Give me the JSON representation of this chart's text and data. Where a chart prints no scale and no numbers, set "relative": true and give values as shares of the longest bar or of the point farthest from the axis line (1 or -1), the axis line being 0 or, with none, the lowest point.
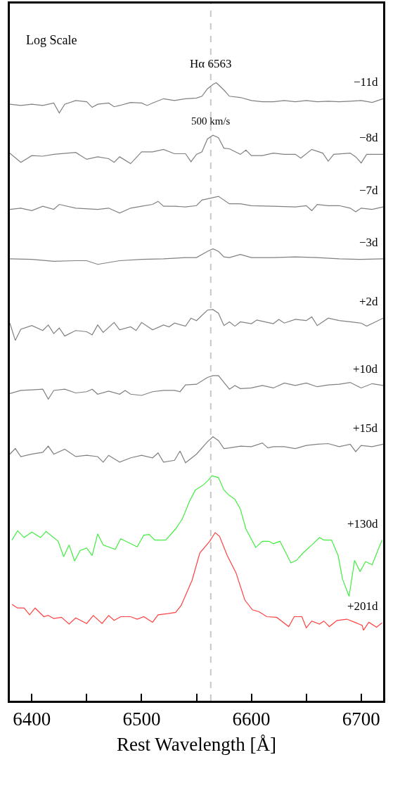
{
  "chart_data": {
    "type": "line",
    "relative": true,
    "xlabel": "Rest Wavelength [Å]",
    "xlim": [
      6380,
      6720
    ],
    "xticks": [
      6400,
      {
        "value": 6450,
        "label": null
      },
      6500,
      {
        "value": 6550,
        "label": null
      },
      6600,
      {
        "value": 6650,
        "label": null
      },
      6700
    ],
    "tick_labels": "x",
    "grid": false,
    "legend": false,
    "marker": "none",
    "line_style": "solid",
    "ref_lines": [
      {
        "axis": "x",
        "value": 6563,
        "label": "Hα 6563",
        "color": "#c8c8c8",
        "line_style": "dashed"
      }
    ],
    "annotations": [
      "Log Scale",
      "500 km/s"
    ],
    "series": [
      {
        "name": "−11d",
        "color": "#808080",
        "x": [
          6380,
          6390,
          6400,
          6410,
          6420,
          6425,
          6430,
          6440,
          6450,
          6455,
          6460,
          6470,
          6475,
          6480,
          6490,
          6500,
          6505,
          6510,
          6520,
          6530,
          6540,
          6550,
          6555,
          6560,
          6565,
          6568,
          6575,
          6580,
          6590,
          6600,
          6610,
          6620,
          6630,
          6640,
          6650,
          6660,
          6670,
          6680,
          6690,
          6700,
          6710,
          6720
        ],
        "values": [
          0.965,
          0.963,
          0.965,
          0.963,
          0.967,
          0.951,
          0.965,
          0.971,
          0.969,
          0.96,
          0.965,
          0.967,
          0.961,
          0.963,
          0.968,
          0.967,
          0.963,
          0.967,
          0.974,
          0.971,
          0.974,
          0.975,
          0.978,
          0.99,
          0.997,
          1.0,
          0.988,
          0.978,
          0.976,
          0.971,
          0.969,
          0.969,
          0.971,
          0.969,
          0.971,
          0.969,
          0.97,
          0.969,
          0.97,
          0.971,
          0.968,
          0.974
        ]
      },
      {
        "name": "−8d",
        "color": "#808080",
        "x": [
          6380,
          6390,
          6400,
          6410,
          6420,
          6440,
          6450,
          6460,
          6470,
          6475,
          6480,
          6490,
          6500,
          6510,
          6520,
          6530,
          6540,
          6545,
          6550,
          6555,
          6560,
          6565,
          6570,
          6575,
          6580,
          6590,
          6595,
          6600,
          6610,
          6620,
          6630,
          6640,
          6645,
          6655,
          6665,
          6670,
          6675,
          6690,
          6695,
          6700,
          6705,
          6720
        ],
        "values": [
          0.886,
          0.871,
          0.882,
          0.881,
          0.884,
          0.887,
          0.876,
          0.88,
          0.877,
          0.871,
          0.88,
          0.869,
          0.888,
          0.888,
          0.892,
          0.885,
          0.885,
          0.872,
          0.884,
          0.888,
          0.909,
          0.915,
          0.911,
          0.894,
          0.893,
          0.884,
          0.891,
          0.882,
          0.882,
          0.886,
          0.884,
          0.884,
          0.878,
          0.892,
          0.886,
          0.873,
          0.884,
          0.886,
          0.88,
          0.87,
          0.884,
          0.884
        ]
      },
      {
        "name": "−7d",
        "color": "#808080",
        "x": [
          6380,
          6390,
          6400,
          6410,
          6420,
          6425,
          6440,
          6460,
          6470,
          6480,
          6490,
          6500,
          6510,
          6515,
          6520,
          6530,
          6540,
          6550,
          6555,
          6560,
          6570,
          6580,
          6590,
          6600,
          6620,
          6640,
          6650,
          6655,
          6660,
          6670,
          6680,
          6690,
          6695,
          6700,
          6710,
          6720
        ],
        "values": [
          0.795,
          0.797,
          0.793,
          0.8,
          0.795,
          0.803,
          0.797,
          0.795,
          0.797,
          0.789,
          0.797,
          0.8,
          0.803,
          0.808,
          0.8,
          0.8,
          0.799,
          0.801,
          0.81,
          0.812,
          0.816,
          0.804,
          0.804,
          0.801,
          0.8,
          0.799,
          0.801,
          0.793,
          0.803,
          0.801,
          0.801,
          0.797,
          0.791,
          0.797,
          0.795,
          0.799
        ]
      },
      {
        "name": "−3d",
        "color": "#808080",
        "x": [
          6380,
          6400,
          6420,
          6440,
          6450,
          6460,
          6480,
          6500,
          6520,
          6540,
          6550,
          6560,
          6565,
          6570,
          6575,
          6580,
          6590,
          6600,
          6620,
          6640,
          6660,
          6680,
          6700,
          6720
        ],
        "values": [
          0.715,
          0.714,
          0.711,
          0.712,
          0.712,
          0.706,
          0.712,
          0.714,
          0.715,
          0.717,
          0.717,
          0.727,
          0.731,
          0.727,
          0.718,
          0.717,
          0.722,
          0.717,
          0.717,
          0.718,
          0.717,
          0.715,
          0.714,
          0.715
        ]
      },
      {
        "name": "+2d",
        "color": "#808080",
        "x": [
          6380,
          6385,
          6390,
          6400,
          6410,
          6415,
          6420,
          6425,
          6430,
          6440,
          6450,
          6455,
          6460,
          6465,
          6475,
          6480,
          6490,
          6495,
          6500,
          6510,
          6520,
          6525,
          6530,
          6540,
          6545,
          6550,
          6560,
          6565,
          6570,
          6575,
          6580,
          6585,
          6590,
          6600,
          6605,
          6610,
          6620,
          6625,
          6630,
          6640,
          6650,
          6655,
          6660,
          6670,
          6680,
          6690,
          6700,
          6705,
          6720
        ],
        "values": [
          0.611,
          0.583,
          0.601,
          0.607,
          0.599,
          0.608,
          0.594,
          0.603,
          0.59,
          0.599,
          0.597,
          0.592,
          0.608,
          0.596,
          0.612,
          0.6,
          0.605,
          0.599,
          0.612,
          0.6,
          0.608,
          0.605,
          0.611,
          0.606,
          0.619,
          0.615,
          0.632,
          0.633,
          0.627,
          0.607,
          0.613,
          0.606,
          0.613,
          0.61,
          0.616,
          0.614,
          0.61,
          0.617,
          0.611,
          0.617,
          0.615,
          0.621,
          0.607,
          0.619,
          0.615,
          0.613,
          0.611,
          0.606,
          0.619
        ]
      },
      {
        "name": "+10d",
        "color": "#808080",
        "x": [
          6380,
          6390,
          6400,
          6410,
          6415,
          6420,
          6430,
          6440,
          6450,
          6455,
          6460,
          6470,
          6480,
          6485,
          6490,
          6500,
          6510,
          6520,
          6530,
          6535,
          6540,
          6550,
          6560,
          6565,
          6570,
          6580,
          6585,
          6590,
          6600,
          6610,
          6620,
          6630,
          6640,
          6650,
          6660,
          6670,
          6680,
          6690,
          6700,
          6710,
          6720
        ],
        "values": [
          0.497,
          0.502,
          0.503,
          0.504,
          0.488,
          0.502,
          0.504,
          0.498,
          0.5,
          0.504,
          0.496,
          0.501,
          0.496,
          0.502,
          0.496,
          0.494,
          0.5,
          0.502,
          0.502,
          0.5,
          0.511,
          0.512,
          0.523,
          0.526,
          0.526,
          0.504,
          0.51,
          0.505,
          0.506,
          0.51,
          0.506,
          0.514,
          0.51,
          0.514,
          0.508,
          0.511,
          0.512,
          0.515,
          0.506,
          0.513,
          0.51
        ]
      },
      {
        "name": "+15d",
        "color": "#808080",
        "x": [
          6380,
          6385,
          6390,
          6400,
          6410,
          6415,
          6420,
          6430,
          6440,
          6450,
          6460,
          6465,
          6470,
          6480,
          6490,
          6500,
          6510,
          6515,
          6520,
          6530,
          6535,
          6540,
          6550,
          6560,
          6565,
          6570,
          6575,
          6580,
          6590,
          6600,
          6610,
          6615,
          6620,
          6630,
          6640,
          6650,
          6660,
          6670,
          6680,
          6690,
          6695,
          6700,
          6710,
          6720
        ],
        "values": [
          0.399,
          0.408,
          0.395,
          0.399,
          0.402,
          0.412,
          0.399,
          0.407,
          0.395,
          0.397,
          0.395,
          0.386,
          0.397,
          0.386,
          0.393,
          0.397,
          0.393,
          0.401,
          0.386,
          0.389,
          0.404,
          0.385,
          0.399,
          0.419,
          0.427,
          0.421,
          0.408,
          0.409,
          0.412,
          0.411,
          0.417,
          0.409,
          0.411,
          0.411,
          0.408,
          0.413,
          0.415,
          0.416,
          0.411,
          0.415,
          0.403,
          0.413,
          0.411,
          0.415
        ]
      },
      {
        "name": "+130d",
        "color": "#40ee40",
        "x": [
          6382,
          6387,
          6393,
          6400,
          6408,
          6413,
          6424,
          6429,
          6434,
          6439,
          6444,
          6450,
          6455,
          6460,
          6465,
          6476,
          6481,
          6496,
          6502,
          6507,
          6512,
          6522,
          6531,
          6537,
          6544,
          6549,
          6556,
          6561,
          6564,
          6570,
          6575,
          6580,
          6585,
          6590,
          6595,
          6604,
          6610,
          6616,
          6620,
          6626,
          6636,
          6641,
          6647,
          6655,
          6662,
          6666,
          6673,
          6679,
          6683,
          6689,
          6694,
          6699,
          6704,
          6710,
          6719
        ],
        "values": [
          0.26,
          0.275,
          0.264,
          0.273,
          0.264,
          0.274,
          0.258,
          0.233,
          0.252,
          0.226,
          0.243,
          0.247,
          0.235,
          0.27,
          0.252,
          0.245,
          0.262,
          0.249,
          0.268,
          0.269,
          0.26,
          0.26,
          0.278,
          0.294,
          0.324,
          0.341,
          0.349,
          0.357,
          0.364,
          0.361,
          0.341,
          0.332,
          0.326,
          0.31,
          0.278,
          0.248,
          0.258,
          0.258,
          0.254,
          0.258,
          0.223,
          0.227,
          0.239,
          0.252,
          0.264,
          0.26,
          0.26,
          0.235,
          0.197,
          0.169,
          0.227,
          0.209,
          0.225,
          0.22,
          0.26
        ]
      },
      {
        "name": "+201d",
        "color": "#ff4040",
        "x": [
          6382,
          6387,
          6393,
          6398,
          6403,
          6411,
          6415,
          6420,
          6427,
          6434,
          6440,
          6450,
          6456,
          6464,
          6470,
          6475,
          6481,
          6490,
          6496,
          6502,
          6510,
          6515,
          6524,
          6531,
          6536,
          6546,
          6553,
          6562,
          6567,
          6571,
          6578,
          6586,
          6594,
          6601,
          6607,
          6614,
          6623,
          6634,
          6639,
          6646,
          6650,
          6655,
          6662,
          6666,
          6671,
          6678,
          6687,
          6694,
          6701,
          6702,
          6707,
          6714,
          6719
        ],
        "values": [
          0.156,
          0.15,
          0.15,
          0.139,
          0.15,
          0.136,
          0.138,
          0.133,
          0.135,
          0.124,
          0.134,
          0.125,
          0.138,
          0.125,
          0.138,
          0.13,
          0.136,
          0.136,
          0.132,
          0.136,
          0.127,
          0.139,
          0.141,
          0.143,
          0.154,
          0.195,
          0.239,
          0.258,
          0.272,
          0.266,
          0.235,
          0.207,
          0.163,
          0.147,
          0.144,
          0.136,
          0.135,
          0.12,
          0.136,
          0.136,
          0.118,
          0.129,
          0.124,
          0.129,
          0.12,
          0.13,
          0.132,
          0.127,
          0.122,
          0.114,
          0.127,
          0.119,
          0.126
        ]
      }
    ]
  }
}
